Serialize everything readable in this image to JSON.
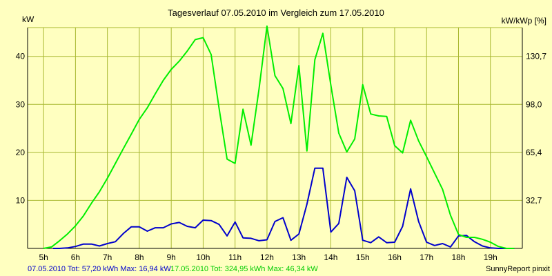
{
  "chart_data": {
    "type": "line",
    "title": "Tagesverlauf 07.05.2010 im Vergleich zum 17.05.2010",
    "ylabel_left": "kW",
    "ylabel_right": "kW/kWp [%]",
    "x_ticks": [
      "5h",
      "6h",
      "7h",
      "8h",
      "9h",
      "10h",
      "11h",
      "12h",
      "13h",
      "14h",
      "15h",
      "16h",
      "17h",
      "18h",
      "19h"
    ],
    "y_ticks_left": [
      "10",
      "20",
      "30",
      "40"
    ],
    "y_ticks_right": [
      "32,7",
      "65,4",
      "98,0",
      "130,7"
    ],
    "xlim": [
      4.5,
      20
    ],
    "ylim": [
      0,
      46
    ],
    "grid": true,
    "colors": {
      "background": "#ffffc0",
      "grid": "#a8b830",
      "axis": "#000000",
      "series1": "#0000cc",
      "series2": "#00ee00"
    },
    "series": [
      {
        "name": "07.05.2010",
        "color": "#0000cc",
        "x": [
          5.3,
          5.5,
          5.75,
          6.0,
          6.25,
          6.5,
          6.75,
          7.0,
          7.25,
          7.5,
          7.75,
          8.0,
          8.25,
          8.5,
          8.75,
          9.0,
          9.25,
          9.5,
          9.75,
          10.0,
          10.25,
          10.5,
          10.75,
          11.0,
          11.25,
          11.5,
          11.75,
          12.0,
          12.25,
          12.5,
          12.75,
          13.0,
          13.25,
          13.5,
          13.75,
          14.0,
          14.25,
          14.5,
          14.75,
          15.0,
          15.25,
          15.5,
          15.75,
          16.0,
          16.25,
          16.5,
          16.75,
          17.0,
          17.25,
          17.5,
          17.75,
          18.0,
          18.25,
          18.5,
          18.75,
          19.0,
          19.25,
          19.5,
          19.75
        ],
        "values": [
          0,
          0,
          0.1,
          0.4,
          0.9,
          0.9,
          0.5,
          1.0,
          1.4,
          3.1,
          4.5,
          4.5,
          3.6,
          4.3,
          4.3,
          5.1,
          5.4,
          4.6,
          4.3,
          5.9,
          5.8,
          5.0,
          2.6,
          5.5,
          2.2,
          2.1,
          1.6,
          1.8,
          5.6,
          6.4,
          1.7,
          3.0,
          9.2,
          16.7,
          16.7,
          3.4,
          5.2,
          14.8,
          12.0,
          1.7,
          1.2,
          2.4,
          1.2,
          1.3,
          4.6,
          12.4,
          5.6,
          1.3,
          0.6,
          1.0,
          0.3,
          2.6,
          2.7,
          1.4,
          0.5,
          0.1,
          0,
          0,
          0
        ]
      },
      {
        "name": "17.05.2010",
        "color": "#00ee00",
        "x": [
          5.0,
          5.25,
          5.5,
          5.75,
          6.0,
          6.25,
          6.5,
          6.75,
          7.0,
          7.25,
          7.5,
          7.75,
          8.0,
          8.25,
          8.5,
          8.75,
          9.0,
          9.25,
          9.5,
          9.75,
          10.0,
          10.25,
          10.5,
          10.75,
          11.0,
          11.25,
          11.5,
          11.75,
          12.0,
          12.25,
          12.5,
          12.75,
          13.0,
          13.25,
          13.5,
          13.75,
          14.0,
          14.25,
          14.5,
          14.75,
          15.0,
          15.25,
          15.5,
          15.75,
          16.0,
          16.25,
          16.5,
          16.75,
          17.0,
          17.25,
          17.5,
          17.75,
          18.0,
          18.25,
          18.5,
          18.75,
          19.0,
          19.25,
          19.5,
          19.75
        ],
        "values": [
          0,
          0.3,
          1.6,
          3.0,
          4.7,
          6.8,
          9.4,
          11.8,
          14.6,
          17.7,
          20.8,
          23.8,
          26.9,
          29.3,
          32.2,
          35.0,
          37.3,
          39.0,
          41.1,
          43.5,
          43.9,
          40.4,
          29.2,
          18.6,
          17.7,
          29.0,
          21.5,
          33.2,
          46.3,
          36.0,
          33.3,
          26.0,
          38.1,
          20.3,
          39.3,
          44.8,
          34.0,
          24.0,
          20.1,
          22.8,
          34.1,
          28.0,
          27.6,
          27.5,
          21.4,
          19.9,
          26.7,
          22.4,
          19.1,
          15.7,
          12.3,
          6.9,
          2.9,
          2.3,
          2.3,
          1.9,
          1.3,
          0.4,
          0,
          0
        ]
      }
    ],
    "footer": {
      "series1_text": "07.05.2010 Tot: 57,20 kWh Max: 16,94 kW",
      "series2_text": "17.05.2010 Tot: 324,95 kWh Max: 46,34 kW",
      "credit": "SunnyReport pinxit"
    }
  }
}
